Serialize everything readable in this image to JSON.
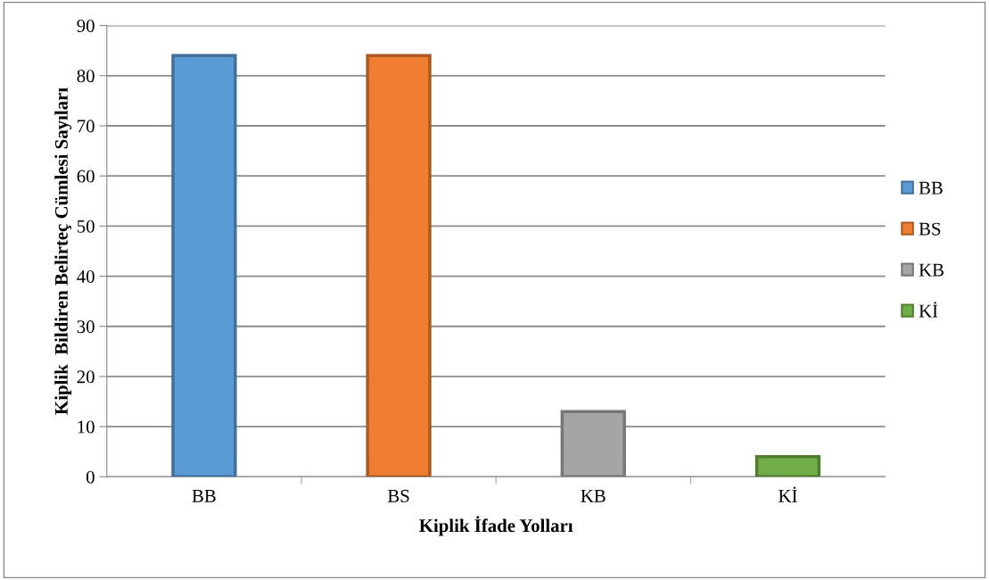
{
  "chart_data": {
    "type": "bar",
    "xlabel": "Kiplik İfade Yolları",
    "ylabel": "Kiplik  Bildiren Belirteç Cümlesi Sayıları",
    "categories": [
      "BB",
      "BS",
      "KB",
      "Kİ"
    ],
    "series": [
      {
        "name": "BB",
        "color": "#5b9bd5",
        "values": [
          84,
          null,
          null,
          null
        ]
      },
      {
        "name": "BS",
        "color": "#ed7d31",
        "values": [
          null,
          84,
          null,
          null
        ]
      },
      {
        "name": "KB",
        "color": "#a5a5a5",
        "values": [
          null,
          null,
          13,
          null
        ]
      },
      {
        "name": "Kİ",
        "color": "#70ad47",
        "values": [
          null,
          null,
          null,
          4
        ]
      }
    ],
    "ylim": [
      0,
      90
    ],
    "yticks": [
      0,
      10,
      20,
      30,
      40,
      50,
      60,
      70,
      80,
      90
    ],
    "grid": "y",
    "legend": "right"
  }
}
